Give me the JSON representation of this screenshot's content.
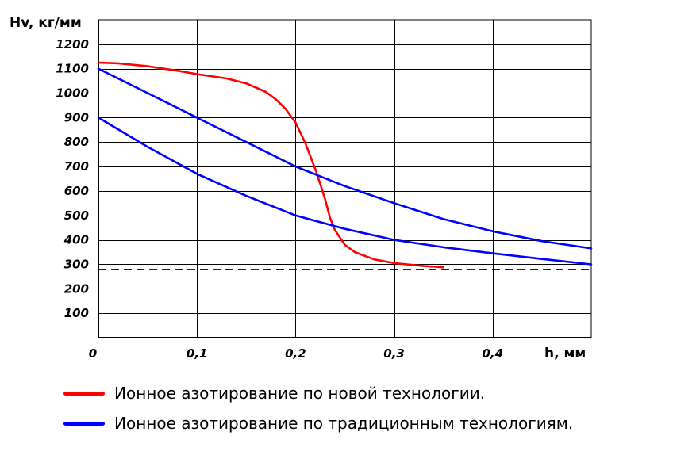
{
  "chart_data": {
    "type": "line",
    "ylabel": "Hv, кг/мм",
    "xlabel": "h, мм",
    "xlim": [
      0,
      0.5
    ],
    "ylim": [
      0,
      1300
    ],
    "x_ticks": [
      "0",
      "0,1",
      "0,2",
      "0,3",
      "0,4"
    ],
    "y_ticks": [
      "100",
      "200",
      "300",
      "400",
      "500",
      "600",
      "700",
      "800",
      "900",
      "1000",
      "1100",
      "1200"
    ],
    "grid": true,
    "series": [
      {
        "name": "Ионное азотирование по новой технологии.",
        "color": "#ff0000",
        "x": [
          0,
          0.02,
          0.05,
          0.08,
          0.1,
          0.13,
          0.15,
          0.17,
          0.18,
          0.19,
          0.2,
          0.21,
          0.22,
          0.225,
          0.23,
          0.235,
          0.24,
          0.25,
          0.26,
          0.28,
          0.3,
          0.33,
          0.35
        ],
        "y": [
          1125,
          1122,
          1110,
          1092,
          1078,
          1060,
          1040,
          1005,
          975,
          935,
          880,
          795,
          690,
          630,
          565,
          490,
          440,
          380,
          350,
          320,
          305,
          293,
          288
        ]
      },
      {
        "name": "Ионное азотирование по традиционным технологиям.",
        "color": "#0000ff",
        "x": [
          0,
          0.05,
          0.1,
          0.15,
          0.2,
          0.25,
          0.3,
          0.35,
          0.4,
          0.45,
          0.5
        ],
        "y": [
          1100,
          1000,
          900,
          800,
          700,
          620,
          550,
          485,
          435,
          395,
          365
        ]
      },
      {
        "name": "",
        "color": "#0000ff",
        "x": [
          0,
          0.05,
          0.1,
          0.15,
          0.2,
          0.25,
          0.3,
          0.35,
          0.4,
          0.45,
          0.5
        ],
        "y": [
          900,
          780,
          670,
          580,
          500,
          445,
          400,
          370,
          345,
          322,
          300
        ]
      }
    ],
    "reference_line": {
      "y": 280,
      "style": "dashed",
      "color": "#000000"
    }
  },
  "legend": [
    {
      "label": "Ионное азотирование по новой технологии.",
      "color": "#ff0000"
    },
    {
      "label": "Ионное азотирование по традиционным технологиям.",
      "color": "#0000ff"
    }
  ]
}
